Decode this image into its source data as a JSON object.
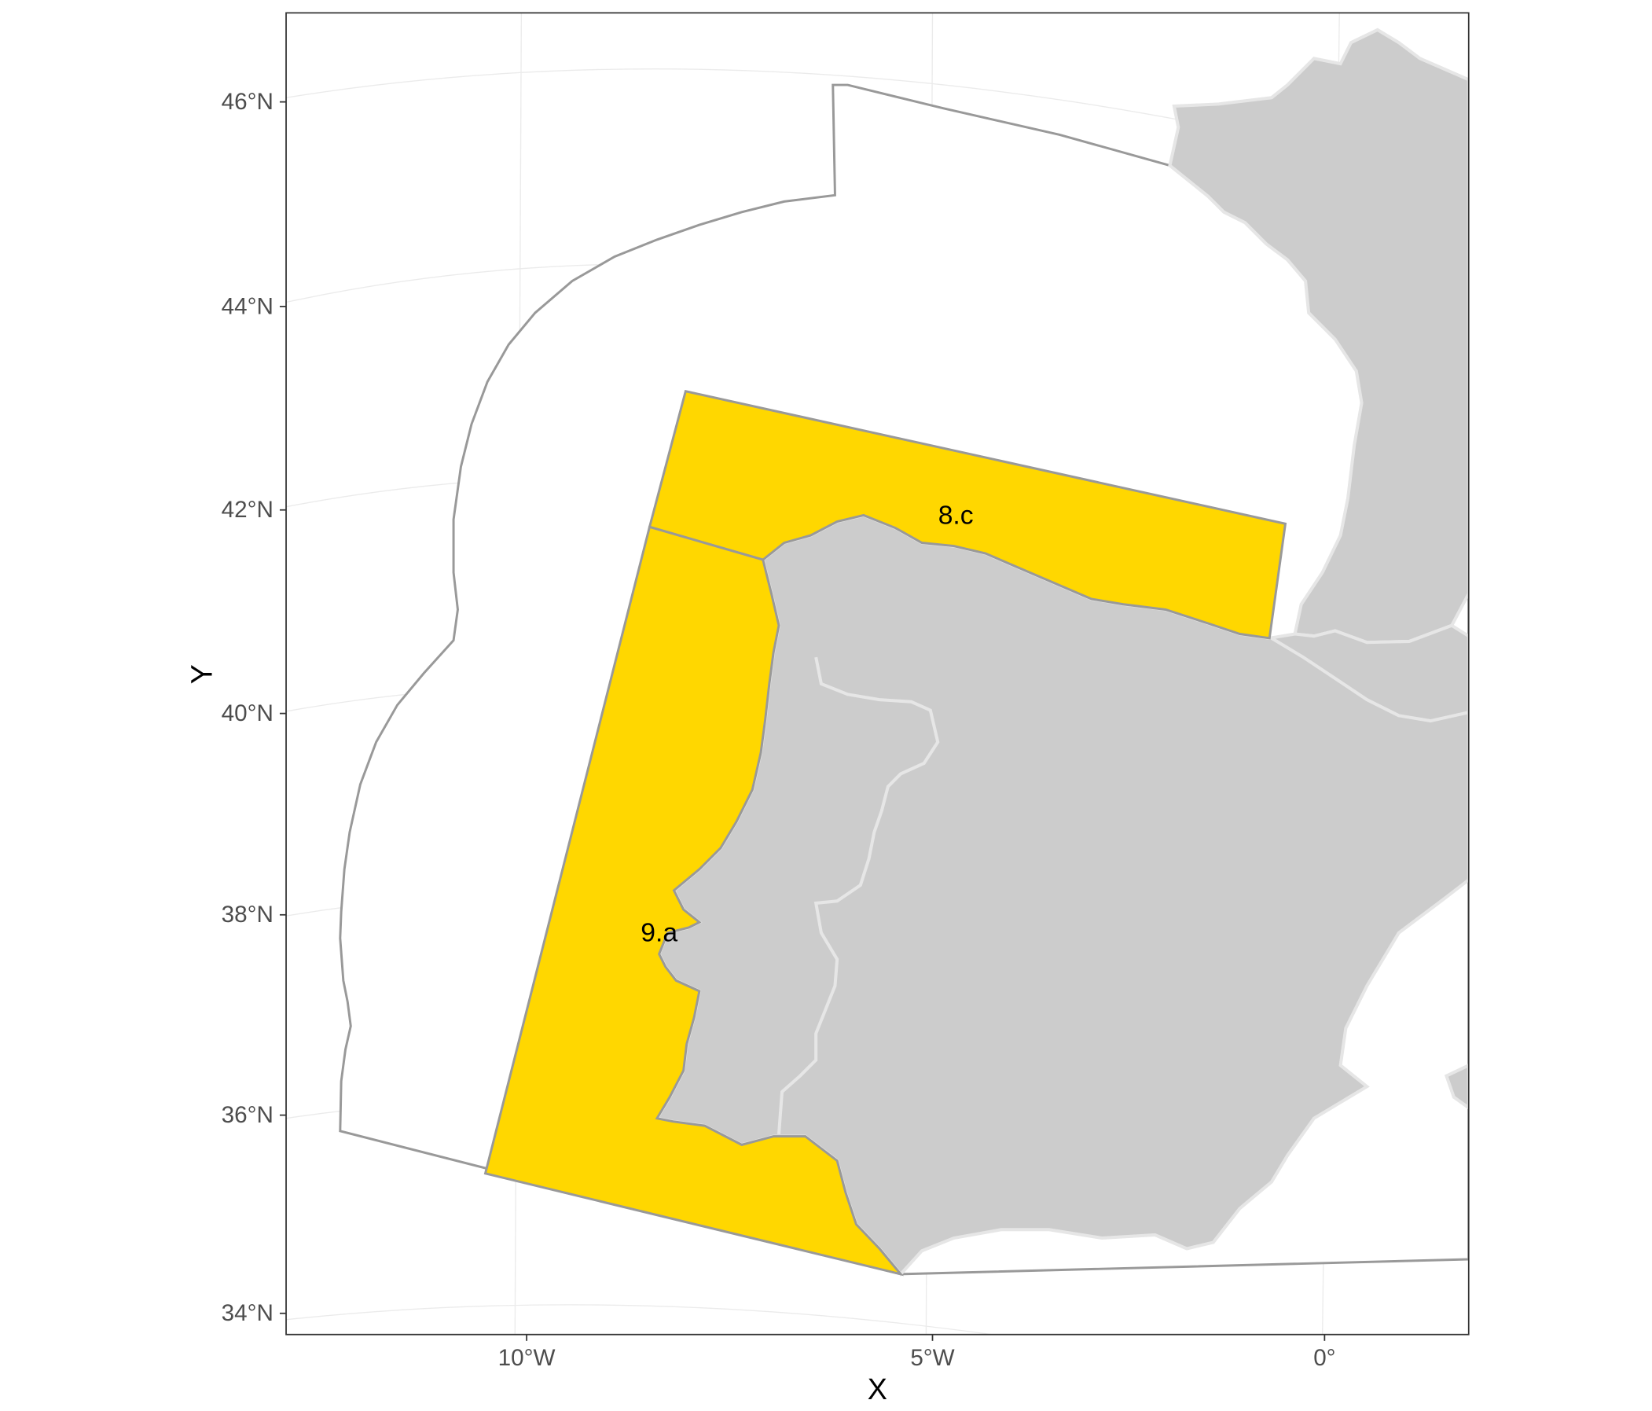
{
  "chart_data": {
    "type": "map",
    "xlabel": "X",
    "ylabel": "Y",
    "x_ticks": [
      {
        "lon": -10,
        "label": "10°W"
      },
      {
        "lon": -5,
        "label": "5°W"
      },
      {
        "lon": 0,
        "label": "0°"
      }
    ],
    "y_ticks": [
      {
        "lat": 46,
        "label": "46°N"
      },
      {
        "lat": 44,
        "label": "44°N"
      },
      {
        "lat": 42,
        "label": "42°N"
      },
      {
        "lat": 40,
        "label": "40°N"
      },
      {
        "lat": 38,
        "label": "38°N"
      },
      {
        "lat": 36,
        "label": "36°N"
      },
      {
        "lat": 34,
        "label": "34°N"
      }
    ],
    "areas": [
      {
        "id": "8.c",
        "label": "8.c",
        "fill": "#ffd700"
      },
      {
        "id": "9.a",
        "label": "9.a",
        "fill": "#ffd700"
      }
    ],
    "outer_region": {
      "fill": "#ffffff",
      "stroke": "#999999"
    },
    "land": {
      "fill": "#cccccc",
      "border_color": "#e6e6e6"
    },
    "area_stroke": "#999999",
    "grid": true,
    "grid_color": "#ebebeb",
    "panel_border": "#333333"
  }
}
